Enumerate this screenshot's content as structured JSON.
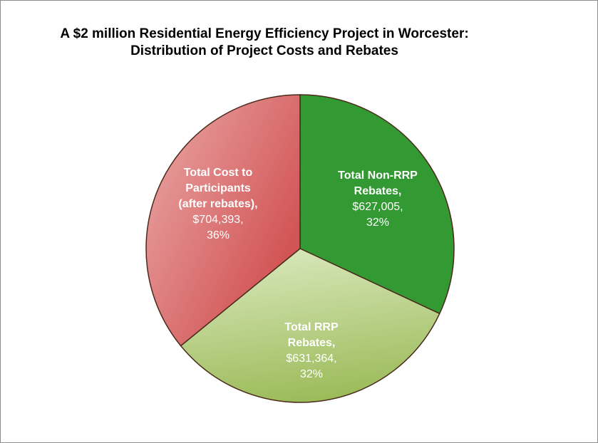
{
  "title": {
    "line1": "A $2 million Residential Energy Efficiency Project in Worcester:",
    "line2": "Distribution of Project Costs and Rebates"
  },
  "chart_data": {
    "type": "pie",
    "title": "A $2 million Residential Energy Efficiency Project in Worcester: Distribution of Project Costs and Rebates",
    "start_angle_deg": 0,
    "direction": "clockwise",
    "slices": [
      {
        "name_lines": [
          "Total Non-RRP",
          "Rebates,"
        ],
        "value_text": "$627,005,",
        "percent_text": "32%",
        "value": 627005,
        "percent": 32,
        "color": "#339933",
        "gradient": [
          "#339933",
          "#339933"
        ]
      },
      {
        "name_lines": [
          "Total RRP",
          "Rebates,"
        ],
        "value_text": "$631,364,",
        "percent_text": "32%",
        "value": 631364,
        "percent": 32,
        "color": "#9BBB59",
        "gradient": [
          "#d4e4b4",
          "#9BBB59"
        ]
      },
      {
        "name_lines": [
          "Total Cost to",
          "Participants",
          "(after rebates),"
        ],
        "value_text": "$704,393,",
        "percent_text": "36%",
        "value": 704393,
        "percent": 36,
        "color": "#D25454",
        "gradient": [
          "#D25454",
          "#e49494"
        ]
      }
    ]
  }
}
